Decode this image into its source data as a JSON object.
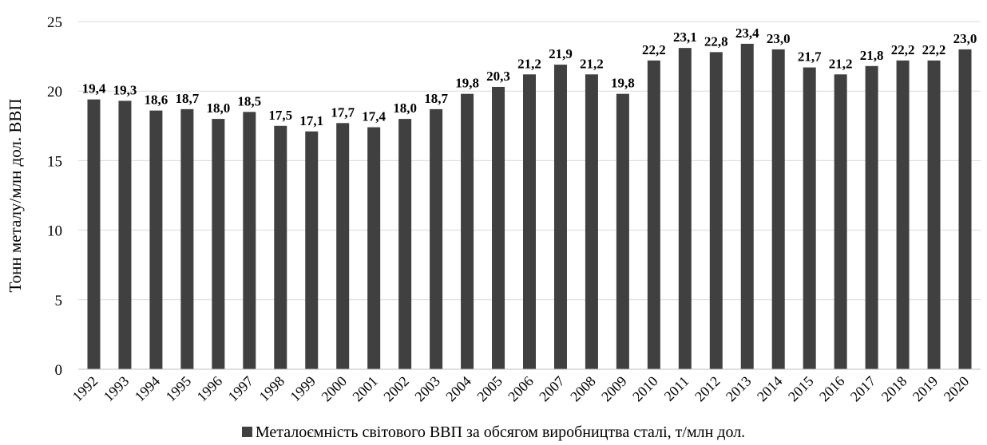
{
  "chart_data": {
    "type": "bar",
    "categories": [
      "1992",
      "1993",
      "1994",
      "1995",
      "1996",
      "1997",
      "1998",
      "1999",
      "2000",
      "2001",
      "2002",
      "2003",
      "2004",
      "2005",
      "2006",
      "2007",
      "2008",
      "2009",
      "2010",
      "2011",
      "2012",
      "2013",
      "2014",
      "2015",
      "2016",
      "2017",
      "2018",
      "2019",
      "2020"
    ],
    "values": [
      19.4,
      19.3,
      18.6,
      18.7,
      18.0,
      18.5,
      17.5,
      17.1,
      17.7,
      17.4,
      18.0,
      18.7,
      19.8,
      20.3,
      21.2,
      21.9,
      21.2,
      19.8,
      22.2,
      23.1,
      22.8,
      23.4,
      23.0,
      21.7,
      21.2,
      21.8,
      22.2,
      22.2,
      23.0
    ],
    "data_labels": [
      "19,4",
      "19,3",
      "18,6",
      "18,7",
      "18,0",
      "18,5",
      "17,5",
      "17,1",
      "17,7",
      "17,4",
      "18,0",
      "18,7",
      "19,8",
      "20,3",
      "21,2",
      "21,9",
      "21,2",
      "19,8",
      "22,2",
      "23,1",
      "22,8",
      "23,4",
      "23,0",
      "21,7",
      "21,2",
      "21,8",
      "22,2",
      "22,2",
      "23,0"
    ],
    "ylabel": "Тонн металу/млн дол. ВВП",
    "xlabel": "",
    "ylim": [
      0,
      25
    ],
    "yticks": [
      0,
      5,
      10,
      15,
      20,
      25
    ],
    "grid": true,
    "legend": {
      "position": "bottom",
      "entries": [
        "Металоємність світового ВВП за обсягом виробництва сталі, т/млн дол."
      ]
    },
    "colors": {
      "bar": "#404040",
      "grid": "#d9d9d9",
      "axis": "#bfbfbf"
    }
  }
}
